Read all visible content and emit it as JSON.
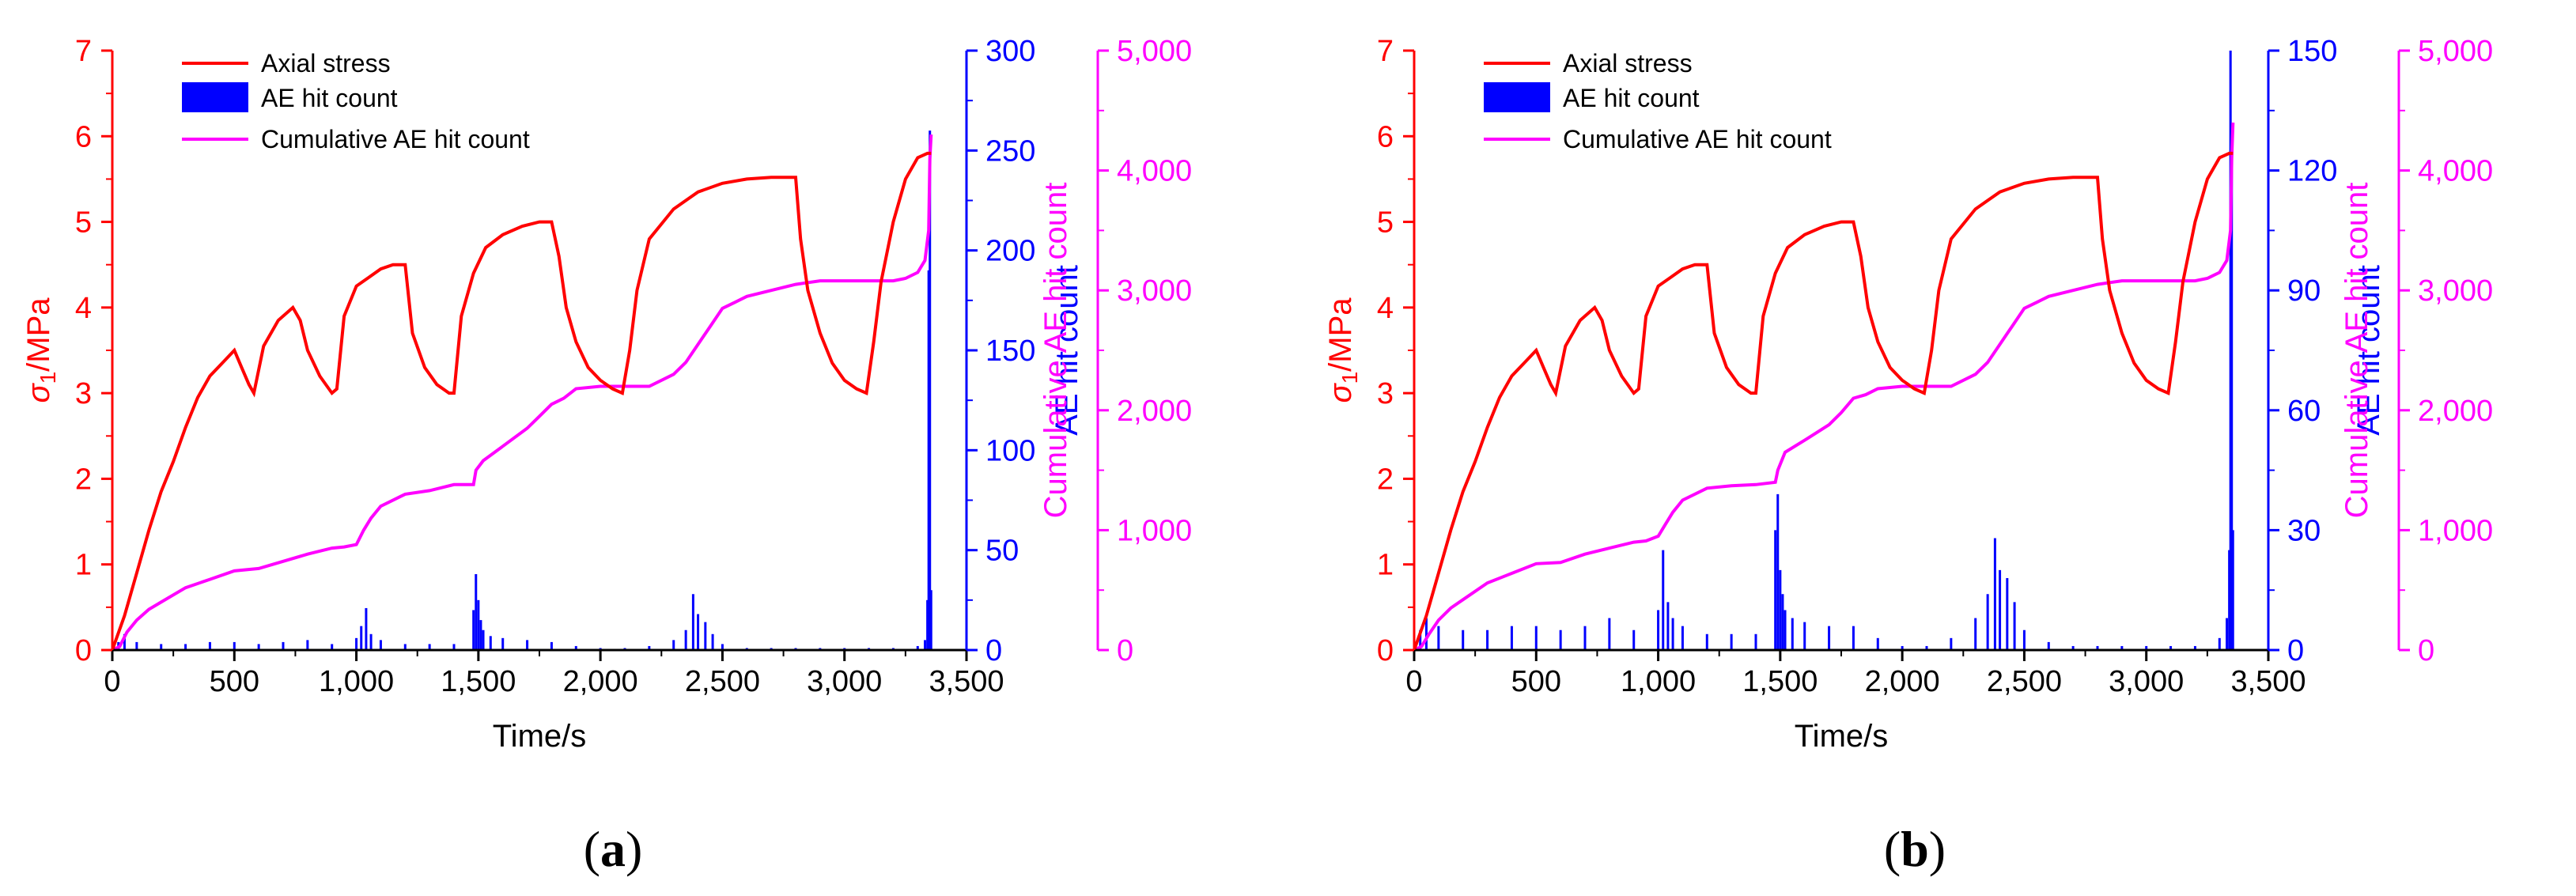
{
  "colors": {
    "stress": "#ff0000",
    "hits": "#0000ff",
    "cumulative": "#ff00ff",
    "axis": "#000000"
  },
  "chart_data": [
    {
      "type": "line",
      "panel_label": "(a)",
      "panel_letter": "a",
      "xlabel": "Time/s",
      "xlim": [
        0,
        3500
      ],
      "xticks": [
        0,
        500,
        1000,
        1500,
        2000,
        2500,
        3000,
        3500
      ],
      "xtick_labels": [
        "0",
        "500",
        "1,000",
        "1,500",
        "2,000",
        "2,500",
        "3,000",
        "3,500"
      ],
      "y1": {
        "label_symbol": "σ",
        "label_sub": "1",
        "label_unit": "/MPa",
        "lim": [
          0,
          7
        ],
        "ticks": [
          0,
          1,
          2,
          3,
          4,
          5,
          6,
          7
        ],
        "tick_labels": [
          "0",
          "1",
          "2",
          "3",
          "4",
          "5",
          "6",
          "7"
        ]
      },
      "y2": {
        "label": "AE hit count",
        "lim": [
          0,
          300
        ],
        "ticks": [
          0,
          50,
          100,
          150,
          200,
          250,
          300
        ],
        "tick_labels": [
          "0",
          "50",
          "100",
          "150",
          "200",
          "250",
          "300"
        ]
      },
      "y3": {
        "label": "Cumulative AE hit count",
        "lim": [
          0,
          5000
        ],
        "ticks": [
          0,
          1000,
          2000,
          3000,
          4000,
          5000
        ],
        "tick_labels": [
          "0",
          "1,000",
          "2,000",
          "3,000",
          "4,000",
          "5,000"
        ]
      },
      "legend": [
        "Axial stress",
        "AE hit count",
        "Cumulative AE hit count"
      ],
      "legend_position": "top-left",
      "series": [
        {
          "name": "Axial stress",
          "axis": "y1",
          "kind": "line",
          "x": [
            0,
            50,
            100,
            150,
            200,
            250,
            300,
            350,
            400,
            450,
            500,
            530,
            560,
            580,
            620,
            680,
            740,
            770,
            800,
            850,
            900,
            920,
            950,
            1000,
            1050,
            1100,
            1150,
            1200,
            1230,
            1280,
            1330,
            1380,
            1400,
            1430,
            1480,
            1530,
            1600,
            1680,
            1750,
            1800,
            1830,
            1860,
            1900,
            1950,
            2000,
            2050,
            2090,
            2120,
            2150,
            2200,
            2300,
            2400,
            2500,
            2600,
            2700,
            2800,
            2820,
            2850,
            2900,
            2950,
            3000,
            3050,
            3090,
            3120,
            3150,
            3200,
            3250,
            3300,
            3340,
            3350,
            3355
          ],
          "y": [
            0,
            0.4,
            0.9,
            1.4,
            1.85,
            2.2,
            2.6,
            2.95,
            3.2,
            3.35,
            3.5,
            3.3,
            3.1,
            3.0,
            3.55,
            3.85,
            4.0,
            3.85,
            3.5,
            3.2,
            3.0,
            3.05,
            3.9,
            4.25,
            4.35,
            4.45,
            4.5,
            4.5,
            3.7,
            3.3,
            3.1,
            3.0,
            3.0,
            3.9,
            4.4,
            4.7,
            4.85,
            4.95,
            5.0,
            5.0,
            4.6,
            4.0,
            3.6,
            3.3,
            3.15,
            3.05,
            3.0,
            3.5,
            4.2,
            4.8,
            5.15,
            5.35,
            5.45,
            5.5,
            5.52,
            5.52,
            4.8,
            4.2,
            3.7,
            3.35,
            3.15,
            3.05,
            3.0,
            3.6,
            4.3,
            5.0,
            5.5,
            5.75,
            5.8,
            5.8,
            5.8
          ]
        },
        {
          "name": "Cumulative AE hit count",
          "axis": "y3",
          "kind": "line",
          "x": [
            0,
            30,
            60,
            100,
            150,
            200,
            300,
            400,
            500,
            600,
            700,
            800,
            900,
            950,
            1000,
            1030,
            1060,
            1100,
            1200,
            1300,
            1400,
            1480,
            1490,
            1520,
            1600,
            1700,
            1750,
            1800,
            1850,
            1900,
            2000,
            2100,
            2200,
            2300,
            2350,
            2400,
            2450,
            2500,
            2550,
            2600,
            2700,
            2800,
            2900,
            3000,
            3100,
            3200,
            3250,
            3300,
            3330,
            3345,
            3350,
            3355
          ],
          "y": [
            0,
            30,
            150,
            250,
            340,
            400,
            520,
            590,
            660,
            680,
            740,
            800,
            850,
            860,
            880,
            1000,
            1100,
            1200,
            1300,
            1330,
            1380,
            1380,
            1500,
            1580,
            1700,
            1850,
            1950,
            2050,
            2100,
            2180,
            2200,
            2200,
            2200,
            2300,
            2400,
            2550,
            2700,
            2850,
            2900,
            2950,
            3000,
            3050,
            3080,
            3080,
            3080,
            3080,
            3100,
            3150,
            3250,
            3500,
            4100,
            4300
          ]
        },
        {
          "name": "AE hit count",
          "axis": "y2",
          "kind": "bars",
          "x": [
            0,
            25,
            50,
            100,
            200,
            300,
            400,
            500,
            600,
            700,
            800,
            900,
            1000,
            1020,
            1040,
            1060,
            1100,
            1200,
            1300,
            1400,
            1480,
            1490,
            1500,
            1510,
            1520,
            1550,
            1600,
            1700,
            1800,
            1900,
            2000,
            2100,
            2200,
            2300,
            2350,
            2380,
            2400,
            2430,
            2460,
            2500,
            2600,
            2700,
            2800,
            2900,
            3000,
            3100,
            3200,
            3300,
            3330,
            3340,
            3345,
            3350,
            3355
          ],
          "y": [
            0,
            4,
            8,
            4,
            3,
            3,
            4,
            4,
            3,
            4,
            5,
            3,
            6,
            12,
            21,
            8,
            5,
            3,
            3,
            3,
            20,
            38,
            25,
            15,
            10,
            7,
            6,
            5,
            4,
            2,
            1,
            1,
            2,
            5,
            10,
            28,
            18,
            14,
            8,
            3,
            1,
            1,
            1,
            1,
            1,
            1,
            1,
            2,
            5,
            25,
            190,
            260,
            30
          ]
        }
      ]
    },
    {
      "type": "line",
      "panel_label": "(b)",
      "panel_letter": "b",
      "xlabel": "Time/s",
      "xlim": [
        0,
        3500
      ],
      "xticks": [
        0,
        500,
        1000,
        1500,
        2000,
        2500,
        3000,
        3500
      ],
      "xtick_labels": [
        "0",
        "500",
        "1,000",
        "1,500",
        "2,000",
        "2,500",
        "3,000",
        "3,500"
      ],
      "y1": {
        "label_symbol": "σ",
        "label_sub": "1",
        "label_unit": "/MPa",
        "lim": [
          0,
          7
        ],
        "ticks": [
          0,
          1,
          2,
          3,
          4,
          5,
          6,
          7
        ],
        "tick_labels": [
          "0",
          "1",
          "2",
          "3",
          "4",
          "5",
          "6",
          "7"
        ]
      },
      "y2": {
        "label": "AE hit count",
        "lim": [
          0,
          150
        ],
        "ticks": [
          0,
          30,
          60,
          90,
          120,
          150
        ],
        "tick_labels": [
          "0",
          "30",
          "60",
          "90",
          "120",
          "150"
        ]
      },
      "y3": {
        "label": "Cumulative AE hit count",
        "lim": [
          0,
          5000
        ],
        "ticks": [
          0,
          1000,
          2000,
          3000,
          4000,
          5000
        ],
        "tick_labels": [
          "0",
          "1,000",
          "2,000",
          "3,000",
          "4,000",
          "5,000"
        ]
      },
      "legend": [
        "Axial stress",
        "AE hit count",
        "Cumulative AE hit count"
      ],
      "legend_position": "top-left",
      "series": [
        {
          "name": "Axial stress",
          "axis": "y1",
          "kind": "line",
          "x": [
            0,
            50,
            100,
            150,
            200,
            250,
            300,
            350,
            400,
            450,
            500,
            530,
            560,
            580,
            620,
            680,
            740,
            770,
            800,
            850,
            900,
            920,
            950,
            1000,
            1050,
            1100,
            1150,
            1200,
            1230,
            1280,
            1330,
            1380,
            1400,
            1430,
            1480,
            1530,
            1600,
            1680,
            1750,
            1800,
            1830,
            1860,
            1900,
            1950,
            2000,
            2050,
            2090,
            2120,
            2150,
            2200,
            2300,
            2400,
            2500,
            2600,
            2700,
            2800,
            2820,
            2850,
            2900,
            2950,
            3000,
            3050,
            3090,
            3120,
            3150,
            3200,
            3250,
            3300,
            3340,
            3350,
            3355
          ],
          "y": [
            0,
            0.4,
            0.9,
            1.4,
            1.85,
            2.2,
            2.6,
            2.95,
            3.2,
            3.35,
            3.5,
            3.3,
            3.1,
            3.0,
            3.55,
            3.85,
            4.0,
            3.85,
            3.5,
            3.2,
            3.0,
            3.05,
            3.9,
            4.25,
            4.35,
            4.45,
            4.5,
            4.5,
            3.7,
            3.3,
            3.1,
            3.0,
            3.0,
            3.9,
            4.4,
            4.7,
            4.85,
            4.95,
            5.0,
            5.0,
            4.6,
            4.0,
            3.6,
            3.3,
            3.15,
            3.05,
            3.0,
            3.5,
            4.2,
            4.8,
            5.15,
            5.35,
            5.45,
            5.5,
            5.52,
            5.52,
            4.8,
            4.2,
            3.7,
            3.35,
            3.15,
            3.05,
            3.0,
            3.6,
            4.3,
            5.0,
            5.5,
            5.75,
            5.8,
            5.8,
            5.8
          ]
        },
        {
          "name": "Cumulative AE hit count",
          "axis": "y3",
          "kind": "line",
          "x": [
            0,
            30,
            60,
            100,
            150,
            200,
            300,
            400,
            500,
            600,
            700,
            800,
            900,
            950,
            1000,
            1030,
            1060,
            1100,
            1200,
            1300,
            1400,
            1480,
            1490,
            1520,
            1600,
            1700,
            1750,
            1800,
            1850,
            1900,
            2000,
            2100,
            2200,
            2300,
            2350,
            2400,
            2450,
            2500,
            2550,
            2600,
            2700,
            2800,
            2900,
            3000,
            3100,
            3200,
            3250,
            3300,
            3330,
            3345,
            3350,
            3355
          ],
          "y": [
            0,
            30,
            130,
            250,
            350,
            420,
            560,
            640,
            720,
            730,
            800,
            850,
            900,
            910,
            950,
            1050,
            1150,
            1250,
            1350,
            1370,
            1380,
            1400,
            1500,
            1650,
            1750,
            1880,
            1980,
            2100,
            2130,
            2180,
            2200,
            2200,
            2200,
            2300,
            2400,
            2550,
            2700,
            2850,
            2900,
            2950,
            3000,
            3050,
            3080,
            3080,
            3080,
            3080,
            3100,
            3150,
            3250,
            3500,
            4100,
            4400
          ]
        },
        {
          "name": "AE hit count",
          "axis": "y2",
          "kind": "bars",
          "x": [
            0,
            25,
            50,
            100,
            200,
            300,
            400,
            500,
            600,
            700,
            800,
            900,
            1000,
            1020,
            1040,
            1060,
            1100,
            1200,
            1300,
            1400,
            1480,
            1490,
            1500,
            1510,
            1520,
            1550,
            1600,
            1700,
            1800,
            1900,
            2000,
            2100,
            2200,
            2300,
            2350,
            2380,
            2400,
            2430,
            2460,
            2500,
            2600,
            2700,
            2800,
            2900,
            3000,
            3100,
            3200,
            3300,
            3330,
            3340,
            3345,
            3350,
            3355
          ],
          "y": [
            0,
            5,
            8,
            6,
            5,
            5,
            6,
            6,
            5,
            6,
            8,
            5,
            10,
            25,
            12,
            8,
            6,
            4,
            4,
            4,
            30,
            39,
            20,
            14,
            10,
            8,
            7,
            6,
            6,
            3,
            1,
            1,
            3,
            8,
            14,
            28,
            20,
            18,
            12,
            5,
            2,
            1,
            1,
            1,
            1,
            1,
            1,
            3,
            8,
            25,
            150,
            130,
            30
          ]
        }
      ]
    }
  ]
}
